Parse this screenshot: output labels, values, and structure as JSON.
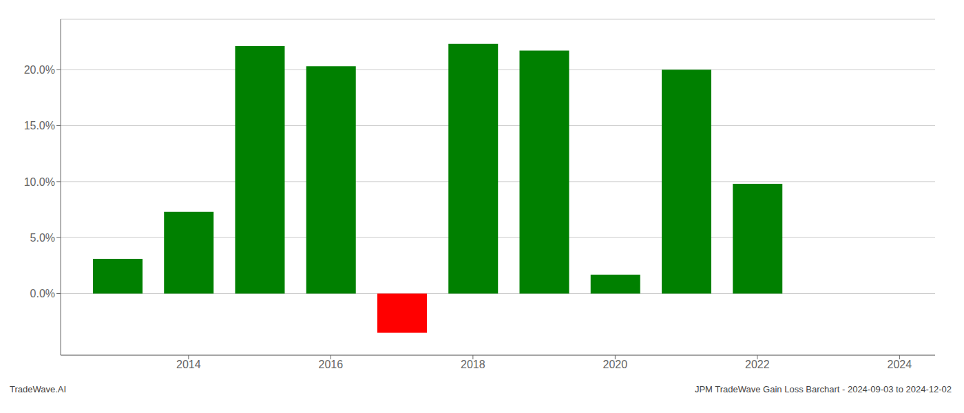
{
  "chart_data": {
    "type": "bar",
    "x": [
      2013,
      2014,
      2015,
      2016,
      2017,
      2018,
      2019,
      2020,
      2021,
      2022,
      2023
    ],
    "values": [
      3.1,
      7.3,
      22.1,
      20.3,
      -3.5,
      22.3,
      21.7,
      1.7,
      20.0,
      9.8,
      0.0
    ],
    "colors": [
      "#008000",
      "#008000",
      "#008000",
      "#008000",
      "#ff0000",
      "#008000",
      "#008000",
      "#008000",
      "#008000",
      "#008000",
      "#008000"
    ],
    "xlim": [
      2012.2,
      2024.5
    ],
    "xticks": [
      2014,
      2016,
      2018,
      2020,
      2022,
      2024
    ],
    "ylim": [
      -5.5,
      24.5
    ],
    "yticks": [
      {
        "value": 0.0,
        "label": "0.0%"
      },
      {
        "value": 5.0,
        "label": "5.0%"
      },
      {
        "value": 10.0,
        "label": "10.0%"
      },
      {
        "value": 15.0,
        "label": "15.0%"
      },
      {
        "value": 20.0,
        "label": "20.0%"
      }
    ],
    "grid": true,
    "annotations": [
      "TradeWave.AI",
      "JPM TradeWave Gain Loss Barchart - 2024-09-03 to 2024-12-02"
    ]
  }
}
